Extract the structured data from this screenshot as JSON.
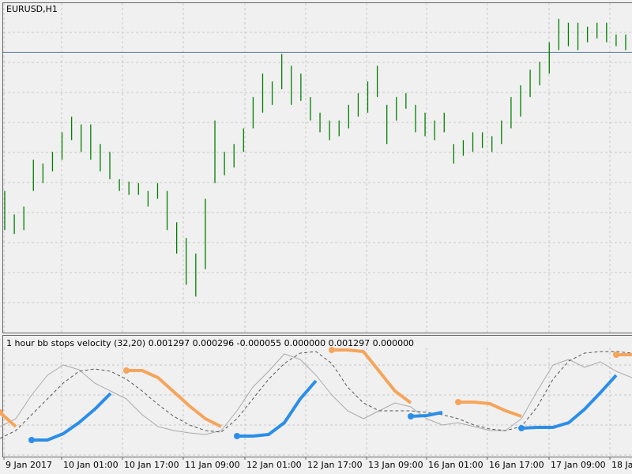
{
  "chart_data": [
    {
      "type": "ohlc",
      "title": "EURUSD,H1",
      "color": "#008000",
      "high": [
        1.059,
        1.0575,
        1.058,
        1.061,
        1.06075,
        1.0615,
        1.06275,
        1.06375,
        1.06325,
        1.06325,
        1.062,
        1.0615,
        1.05975,
        1.0596,
        1.0595,
        1.059,
        1.0595,
        1.059,
        1.057,
        1.056,
        1.055,
        1.0585,
        1.0635,
        1.0615,
        1.062,
        1.063,
        1.065,
        1.0665,
        1.066,
        1.06775,
        1.067,
        1.0665,
        1.065,
        1.064,
        1.0635,
        1.0635,
        1.0645,
        1.06525,
        1.066,
        1.067,
        1.0645,
        1.065,
        1.06525,
        1.0645,
        1.064,
        1.0635,
        1.064,
        1.062,
        1.06225,
        1.06275,
        1.06275,
        1.0625,
        1.0635,
        1.065,
        1.06575,
        1.06675,
        1.06725,
        1.0685,
        1.07,
        1.06975,
        1.06975,
        1.0695,
        1.06975,
        1.06975,
        1.069,
        1.069
      ],
      "low": [
        1.0565,
        1.05625,
        1.0565,
        1.059,
        1.0595,
        1.06025,
        1.061,
        1.06225,
        1.0615,
        1.061,
        1.06025,
        1.05975,
        1.059,
        1.05875,
        1.05875,
        1.058,
        1.0585,
        1.0565,
        1.055,
        1.053,
        1.05225,
        1.054,
        1.0595,
        1.06,
        1.0605,
        1.0615,
        1.063,
        1.064,
        1.0645,
        1.0655,
        1.0645,
        1.06475,
        1.0635,
        1.06275,
        1.06225,
        1.0625,
        1.063,
        1.06375,
        1.064,
        1.065,
        1.062,
        1.0635,
        1.06425,
        1.06275,
        1.0625,
        1.06225,
        1.06275,
        1.06075,
        1.06125,
        1.0615,
        1.06175,
        1.0615,
        1.062,
        1.063,
        1.06375,
        1.065,
        1.06575,
        1.0665,
        1.068,
        1.06825,
        1.068,
        1.0685,
        1.06875,
        1.0685,
        1.06825,
        1.068
      ],
      "hline": 1.06785,
      "hline_color": "#5a7ca8",
      "ylim": [
        1.05,
        1.071
      ]
    },
    {
      "type": "line",
      "title": "1 hour bb stops velocity (32,20) 0.001297 0.000296 -0.000055 0.000000 0.001297 0.000000",
      "x": [
        0,
        1,
        2,
        3,
        4,
        5,
        6,
        7,
        8,
        9,
        10,
        11,
        12,
        13,
        14,
        15,
        16,
        17,
        18,
        19,
        20,
        21,
        22,
        23,
        24,
        25,
        26,
        27,
        28,
        29,
        30,
        31,
        32,
        33,
        34,
        35,
        36,
        37,
        38,
        39,
        40
      ],
      "xlim": [
        0,
        40
      ],
      "ylim": [
        -0.0037,
        0.004
      ],
      "xticks": [
        {
          "value": 0.25,
          "label": "9 Jan 2017"
        },
        {
          "value": 3.9,
          "label": "10 Jan 01:00"
        },
        {
          "value": 7.75,
          "label": "10 Jan 17:00"
        },
        {
          "value": 11.6,
          "label": "11 Jan 09:00"
        },
        {
          "value": 15.5,
          "label": "12 Jan 01:00"
        },
        {
          "value": 19.35,
          "label": "12 Jan 17:00"
        },
        {
          "value": 23.2,
          "label": "13 Jan 09:00"
        },
        {
          "value": 27,
          "label": "16 Jan 01:00"
        },
        {
          "value": 30.85,
          "label": "16 Jan 17:00"
        },
        {
          "value": 34.75,
          "label": "17 Jan 09:00"
        },
        {
          "value": 38.6,
          "label": "18 Jan"
        }
      ],
      "series": [
        {
          "color": "#aaaaaa",
          "style": "solid",
          "width": 1,
          "values": [
            -0.00175,
            -0.00125,
            0.00025,
            0.0015,
            0.00215,
            0.00185,
            0.001,
            0.0005,
            0,
            -0.001,
            -0.00175,
            -0.002,
            -0.00215,
            -0.00225,
            -0.002,
            -0.00075,
            0.00075,
            0.00175,
            0.00285,
            0.0025,
            0.0015,
            0.00025,
            -0.00075,
            -0.00125,
            -0.00075,
            -0.00025,
            -0.0005,
            -0.00125,
            -0.00165,
            -0.0015,
            -0.00175,
            -0.002,
            -0.002,
            -0.00125,
            0.0005,
            0.00215,
            0.0025,
            0.002,
            0.00235,
            0.00175,
            0.00135
          ]
        },
        {
          "color": "#555555",
          "style": "dashed",
          "width": 1,
          "values": [
            -0.0025,
            -0.002,
            -0.001,
            0,
            0.001,
            0.00175,
            0.0019,
            0.00175,
            0.00125,
            0.0005,
            -0.00035,
            -0.0011,
            -0.00165,
            -0.002,
            -0.0021,
            -0.00125,
            0,
            0.00125,
            0.00225,
            0.0029,
            0.003,
            0.00225,
            0.00075,
            -0.00025,
            -0.00075,
            -0.00075,
            -0.00075,
            -0.00085,
            -0.001,
            -0.00125,
            -0.00165,
            -0.0019,
            -0.002,
            -0.00175,
            -0.0005,
            0.00125,
            0.0024,
            0.0029,
            0.003,
            0.003,
            0.0029
          ]
        },
        {
          "color": "#f5a55c",
          "style": "solid",
          "width": 4,
          "values": [
            -0.00085,
            -0.00175,
            null,
            null,
            null,
            null,
            null,
            null,
            0.0018,
            0.0018,
            0.00135,
            0.00045,
            -0.00045,
            -0.00125,
            -0.00175,
            null,
            null,
            null,
            null,
            null,
            null,
            0.0031,
            0.0031,
            0.003,
            0.00175,
            0.0005,
            -0.00025,
            null,
            null,
            -0.0002,
            -0.0002,
            -0.0003,
            -0.00075,
            -0.0011,
            null,
            null,
            null,
            null,
            null,
            0.0028,
            0.0028
          ]
        },
        {
          "color": "#2b8ee8",
          "style": "solid",
          "width": 4,
          "values": [
            null,
            null,
            -0.0026,
            -0.0026,
            -0.0022,
            -0.0015,
            -0.00065,
            0.00035,
            null,
            null,
            null,
            null,
            null,
            null,
            null,
            -0.00235,
            -0.00235,
            -0.00225,
            -0.0015,
            0,
            0.00115,
            null,
            null,
            null,
            null,
            null,
            -0.0011,
            -0.00105,
            -0.00085,
            null,
            null,
            null,
            null,
            -0.00185,
            -0.0018,
            -0.0018,
            -0.0015,
            -0.00065,
            0.0004,
            0.0015,
            null
          ]
        }
      ]
    }
  ]
}
